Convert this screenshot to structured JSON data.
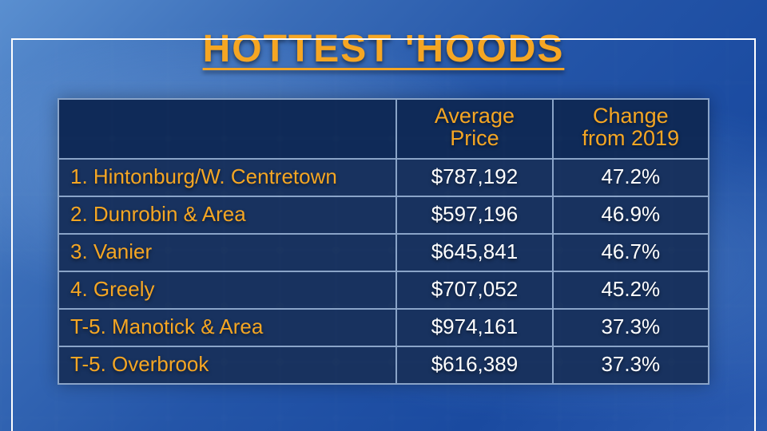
{
  "title": "HOTTEST 'HOODS",
  "colors": {
    "accent": "#f5a623",
    "header_bg": "#0f2a58",
    "row_bg": "#18325f",
    "border": "#8aa4c8",
    "value_text": "#ffffff"
  },
  "table": {
    "type": "table",
    "columns": [
      {
        "key": "rank_name",
        "label": "",
        "align": "left",
        "width_pct": 52
      },
      {
        "key": "avg_price",
        "label": "Average Price",
        "align": "center",
        "width_pct": 24
      },
      {
        "key": "change",
        "label": "Change from 2019",
        "align": "center",
        "width_pct": 24
      }
    ],
    "rows": [
      {
        "rank_name": "1. Hintonburg/W. Centretown",
        "avg_price": "$787,192",
        "change": "47.2%"
      },
      {
        "rank_name": "2. Dunrobin & Area",
        "avg_price": "$597,196",
        "change": "46.9%"
      },
      {
        "rank_name": "3. Vanier",
        "avg_price": "$645,841",
        "change": "46.7%"
      },
      {
        "rank_name": "4. Greely",
        "avg_price": "$707,052",
        "change": "45.2%"
      },
      {
        "rank_name": "T-5. Manotick & Area",
        "avg_price": "$974,161",
        "change": "37.3%"
      },
      {
        "rank_name": "T-5. Overbrook",
        "avg_price": "$616,389",
        "change": "37.3%"
      }
    ]
  },
  "style": {
    "title_fontsize": 48,
    "header_fontsize": 27,
    "cell_fontsize": 26,
    "border_width": 2
  }
}
